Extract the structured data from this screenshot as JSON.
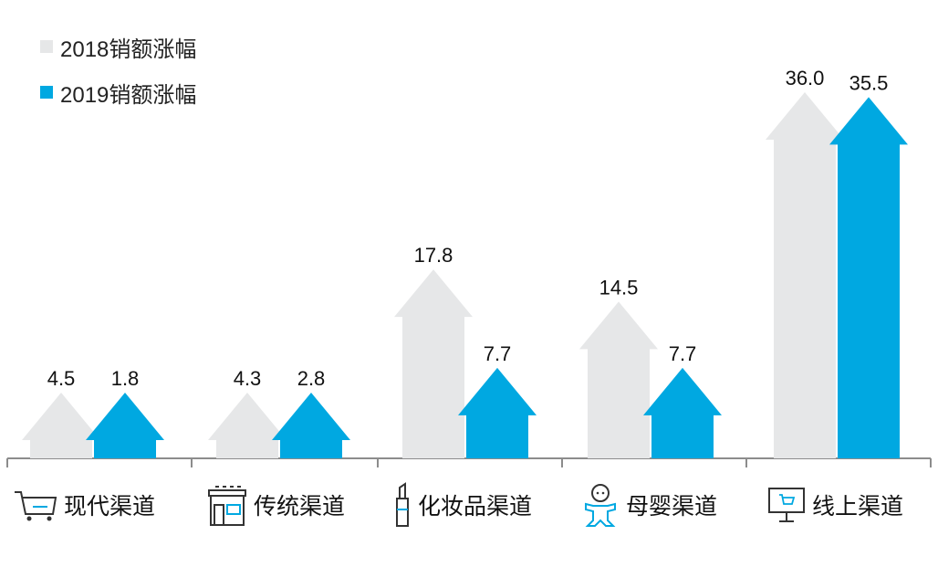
{
  "chart_data": {
    "type": "bar",
    "categories": [
      "现代渠道",
      "传统渠道",
      "化妆品渠道",
      "母婴渠道",
      "线上渠道"
    ],
    "category_icons": [
      "shopping-cart-icon",
      "storefront-icon",
      "lipstick-icon",
      "baby-icon",
      "online-shop-screen-icon"
    ],
    "series": [
      {
        "name": "2018销额涨幅",
        "values": [
          4.5,
          4.3,
          17.8,
          14.5,
          36.0
        ],
        "labels": [
          "4.5",
          "4.3",
          "17.8",
          "14.5",
          "36.0"
        ],
        "color": "#e6e7e8"
      },
      {
        "name": "2019销额涨幅",
        "values": [
          1.8,
          2.8,
          7.7,
          7.7,
          35.5
        ],
        "labels": [
          "1.8",
          "2.8",
          "7.7",
          "7.7",
          "35.5"
        ],
        "color": "#00a8e1"
      }
    ],
    "legend_position": "top-left",
    "bar_shape": "upward-arrow",
    "ylim": [
      0,
      40
    ],
    "grid": false,
    "axis_color": "#8c8c8c"
  }
}
